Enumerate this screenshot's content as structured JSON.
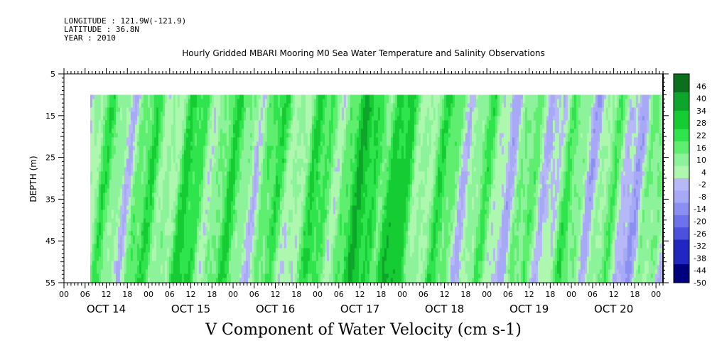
{
  "header": {
    "longitude": "LONGITUDE : 121.9W(-121.9)",
    "latitude": "LATITUDE : 36.8N",
    "year": "YEAR : 2010"
  },
  "plot_title": "Hourly Gridded MBARI Mooring M0 Sea Water Temperature and Salinity Observations",
  "main_title": "V Component of Water Velocity (cm s-1)",
  "colors": {
    "frame": "#000000",
    "positive_light": "#aef7ae",
    "positive_mid": "#5fee6f",
    "positive_strong": "#18d838",
    "negative_light": "#a7a9f7",
    "negative_dark": "#00007f"
  },
  "chart_data": {
    "type": "heatmap",
    "xlabel": "",
    "ylabel": "DEPTH (m)",
    "ylim": [
      55,
      5
    ],
    "x_range_days": [
      0,
      7.083
    ],
    "y_ticks": [
      "5",
      "15",
      "25",
      "35",
      "45",
      "55"
    ],
    "hour_ticks": [
      "00",
      "06",
      "12",
      "18",
      "00",
      "06",
      "12",
      "18",
      "00",
      "06",
      "12",
      "18",
      "00",
      "06",
      "12",
      "18",
      "00",
      "06",
      "12",
      "18",
      "00",
      "06",
      "12",
      "18",
      "00",
      "06",
      "12",
      "18",
      "00"
    ],
    "day_labels": [
      "OCT 14",
      "OCT 15",
      "OCT 16",
      "OCT 17",
      "OCT 18",
      "OCT 19",
      "OCT 20"
    ],
    "data_extent": {
      "x_start_day": 0.31,
      "x_end_day": 7.07,
      "depth_top": 10,
      "depth_bottom": 55
    },
    "colorbar": {
      "labels": [
        "46",
        "40",
        "34",
        "28",
        "22",
        "16",
        "10",
        "4",
        "-2",
        "-8",
        "-14",
        "-20",
        "-26",
        "-32",
        "-38",
        "-44",
        "-50"
      ],
      "min": -50,
      "max": 52,
      "step": 3
    },
    "dominant_sign_by_period": [
      {
        "x_day": [
          0.31,
          0.85
        ],
        "sign": "mixed",
        "value": 3
      },
      {
        "x_day": [
          0.85,
          2.0
        ],
        "sign": "positive",
        "value": 12
      },
      {
        "x_day": [
          2.0,
          2.6
        ],
        "sign": "negative",
        "value": -3
      },
      {
        "x_day": [
          2.0,
          4.8
        ],
        "sign": "positive",
        "value": 14
      },
      {
        "x_day": [
          3.4,
          4.0
        ],
        "sign": "positive",
        "value": 20
      },
      {
        "x_day": [
          4.8,
          6.0
        ],
        "sign": "negative",
        "value": -5
      },
      {
        "x_day": [
          5.5,
          6.3
        ],
        "sign": "positive",
        "value": 4
      },
      {
        "x_day": [
          6.3,
          7.07
        ],
        "sign": "negative",
        "value": -6
      }
    ]
  }
}
